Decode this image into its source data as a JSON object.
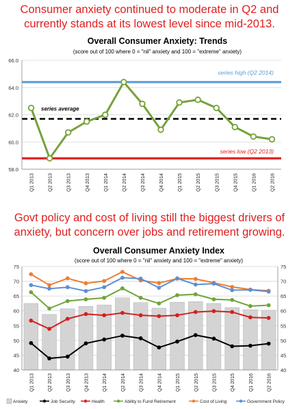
{
  "headline1": "Consumer anxiety continued to moderate in Q2 and currently stands at its lowest level since mid-2013.",
  "headline2": "Govt policy and cost of living still the biggest drivers of anxiety, but concern over jobs and retirement growing.",
  "colors": {
    "headline": "#e01e1e",
    "series_high": "#5b9bd5",
    "series_low": "#e02020",
    "trend_line": "#77a13a",
    "anxiety_bar": "#d4d4d4",
    "job_security": "#000000",
    "health": "#d42020",
    "ability_to_fund_retirement": "#70a43a",
    "cost_of_living": "#ed7d31",
    "government_policy": "#5b8fd6"
  },
  "chart_data": [
    {
      "type": "line",
      "title": "Overall Consumer Anxiety: Trends",
      "subtitle": "(score out of 100 where 0 = \"nil\" anxiety and 100 = \"extreme\" anxiety)",
      "categories": [
        "Q1 2013",
        "Q2 2013",
        "Q3 2013",
        "Q4 2013",
        "Q1 2014",
        "Q2 2014",
        "Q3 2014",
        "Q4 2014",
        "Q1 2015",
        "Q2 2015",
        "Q3 2015",
        "Q4 2015",
        "Q1 2016",
        "Q2 2016"
      ],
      "yticks": [
        "58.0",
        "60.0",
        "62.0",
        "64.0",
        "66.0"
      ],
      "ylim": [
        58,
        66
      ],
      "grid": true,
      "series": [
        {
          "values": [
            62.5,
            58.8,
            60.7,
            61.5,
            62.0,
            64.4,
            62.8,
            60.9,
            62.9,
            63.1,
            62.5,
            61.1,
            60.4,
            60.2
          ]
        }
      ],
      "reference_lines": [
        {
          "label": "series high (Q2 2014)",
          "value": 64.4
        },
        {
          "label": "series average",
          "value": 61.7
        },
        {
          "label": "series low (Q2 2013)",
          "value": 58.8
        }
      ]
    },
    {
      "type": "bar",
      "title": "Overall Consumer Anxiety Index",
      "subtitle": "(score out of 100 where 0 = \"nil\" anxiety and 100 = \"extreme\" anxiety)",
      "categories": [
        "Q1 2013",
        "Q2 2013",
        "Q3 2013",
        "Q4 2013",
        "Q1 2014",
        "Q2 2014",
        "Q3 2014",
        "Q4 2014",
        "Q1 2015",
        "Q2 2015",
        "Q3 2015",
        "Q4 2015",
        "Q1 2016",
        "Q2 2016"
      ],
      "yticks": [
        "40",
        "45",
        "50",
        "55",
        "60",
        "65",
        "70",
        "75"
      ],
      "ylim": [
        40,
        75
      ],
      "grid": true,
      "legend_position": "bottom",
      "series": [
        {
          "name": "Anxiety",
          "type": "bar",
          "values": [
            62.5,
            58.8,
            60.7,
            61.5,
            62.0,
            64.4,
            62.8,
            60.9,
            62.9,
            63.1,
            62.5,
            61.1,
            60.4,
            60.2
          ]
        },
        {
          "name": "Job Security",
          "type": "line",
          "values": [
            49.1,
            43.9,
            44.5,
            49.0,
            50.3,
            51.6,
            50.7,
            47.6,
            49.6,
            51.8,
            50.6,
            48.0,
            48.2,
            48.9
          ]
        },
        {
          "name": "Health",
          "type": "line",
          "values": [
            56.7,
            53.9,
            57.3,
            58.9,
            58.5,
            59.3,
            58.5,
            58.2,
            58.5,
            59.6,
            59.9,
            59.6,
            57.8,
            57.6
          ]
        },
        {
          "name": "Ability to Fund Retirement",
          "type": "line",
          "values": [
            66.3,
            60.8,
            63.3,
            63.9,
            64.4,
            67.6,
            64.4,
            62.5,
            65.3,
            65.6,
            63.9,
            63.7,
            61.6,
            61.9
          ]
        },
        {
          "name": "Cost of Living",
          "type": "line",
          "values": [
            72.4,
            68.7,
            71.0,
            69.3,
            70.1,
            73.2,
            70.3,
            69.4,
            70.9,
            70.8,
            69.5,
            68.1,
            67.2,
            66.8
          ]
        },
        {
          "name": "Government Policy",
          "type": "line",
          "values": [
            68.7,
            67.5,
            68.0,
            66.7,
            68.0,
            71.2,
            70.9,
            67.8,
            71.0,
            68.9,
            69.2,
            67.0,
            67.1,
            66.5
          ]
        }
      ]
    }
  ]
}
